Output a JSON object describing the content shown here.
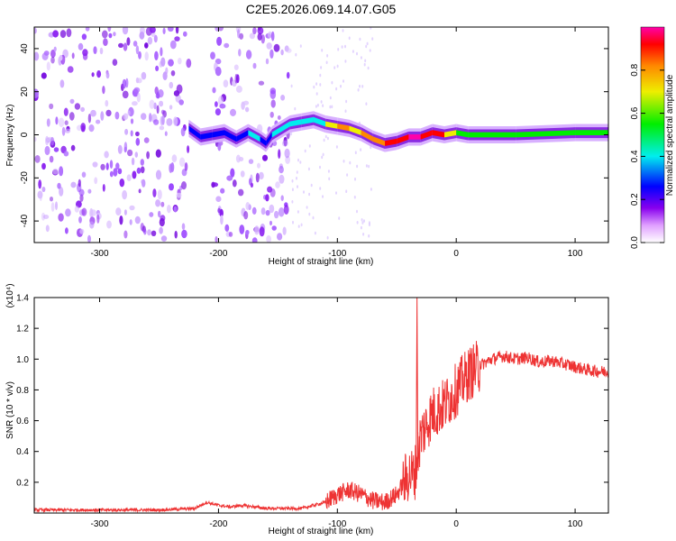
{
  "title": "C2E5.2026.069.14.07.G05",
  "chart_data": [
    {
      "type": "heatmap",
      "xlabel": "Height of straight line (km)",
      "ylabel": "Frequency (Hz)",
      "xlim": [
        -355,
        128
      ],
      "ylim": [
        -50,
        50
      ],
      "xticks": [
        -300,
        -200,
        -100,
        0,
        100
      ],
      "yticks": [
        -40,
        -20,
        0,
        20,
        40
      ],
      "colorbar": {
        "label": "Normalized spectral amplitude",
        "ticks": [
          0.0,
          0.2,
          0.4,
          0.6,
          0.8
        ],
        "range": [
          0,
          1
        ],
        "colormap": [
          "#ffffff",
          "#cc55ff",
          "#8800ee",
          "#0000ff",
          "#00eeee",
          "#00ee00",
          "#eeee00",
          "#ff8800",
          "#ff0000",
          "#ff00aa"
        ]
      },
      "signal_trace": {
        "x": [
          -225,
          -215,
          -205,
          -195,
          -185,
          -175,
          -165,
          -160,
          -155,
          -140,
          -130,
          -120,
          -110,
          -100,
          -90,
          -80,
          -70,
          -60,
          -50,
          -40,
          -30,
          -20,
          -10,
          0,
          10,
          50,
          100,
          128
        ],
        "y": [
          3,
          -1,
          0,
          1,
          -2,
          1,
          -2,
          -4,
          0,
          5,
          6,
          7,
          5,
          4,
          3,
          1,
          -2,
          -4,
          -3,
          -1,
          -1,
          1,
          0,
          1,
          0,
          0,
          1,
          1
        ],
        "amplitude": [
          0.3,
          0.35,
          0.4,
          0.35,
          0.3,
          0.45,
          0.35,
          0.3,
          0.4,
          0.45,
          0.45,
          0.45,
          0.5,
          0.75,
          0.7,
          0.65,
          0.8,
          0.85,
          0.9,
          0.95,
          0.95,
          0.9,
          0.85,
          0.55,
          0.55,
          0.5,
          0.6,
          0.6
        ]
      },
      "noise_regions": [
        [
          -355,
          -225
        ],
        [
          -205,
          -140
        ]
      ]
    },
    {
      "type": "line",
      "xlabel": "Height of straight line (km)",
      "ylabel": "SNR (10 * v/v)",
      "y_multiplier": "(x10⁴)",
      "xlim": [
        -355,
        128
      ],
      "ylim": [
        0,
        1.4
      ],
      "xticks": [
        -300,
        -200,
        -100,
        0,
        100
      ],
      "yticks": [
        0.2,
        0.4,
        0.6,
        0.8,
        1.0,
        1.2,
        1.4
      ],
      "color": "#ee3333",
      "series": [
        {
          "x": [
            -355,
            -300,
            -250,
            -220,
            -210,
            -200,
            -190,
            -180,
            -160,
            -130,
            -110,
            -100,
            -90,
            -80,
            -70,
            -60,
            -50,
            -40,
            -35,
            -30,
            -20,
            -10,
            0,
            10,
            20,
            30,
            40,
            50,
            60,
            70,
            80,
            90,
            100,
            110,
            120,
            128
          ],
          "y": [
            0.02,
            0.02,
            0.02,
            0.03,
            0.07,
            0.05,
            0.04,
            0.05,
            0.03,
            0.03,
            0.07,
            0.12,
            0.15,
            0.12,
            0.08,
            0.07,
            0.12,
            0.25,
            0.25,
            0.5,
            0.65,
            0.7,
            0.8,
            0.9,
            0.96,
            1.0,
            1.02,
            1.0,
            1.01,
            0.98,
            0.99,
            0.97,
            0.95,
            0.93,
            0.92,
            0.92
          ]
        }
      ],
      "annotations": [
        {
          "x": -33,
          "y": 1.4,
          "text": ""
        }
      ]
    }
  ]
}
